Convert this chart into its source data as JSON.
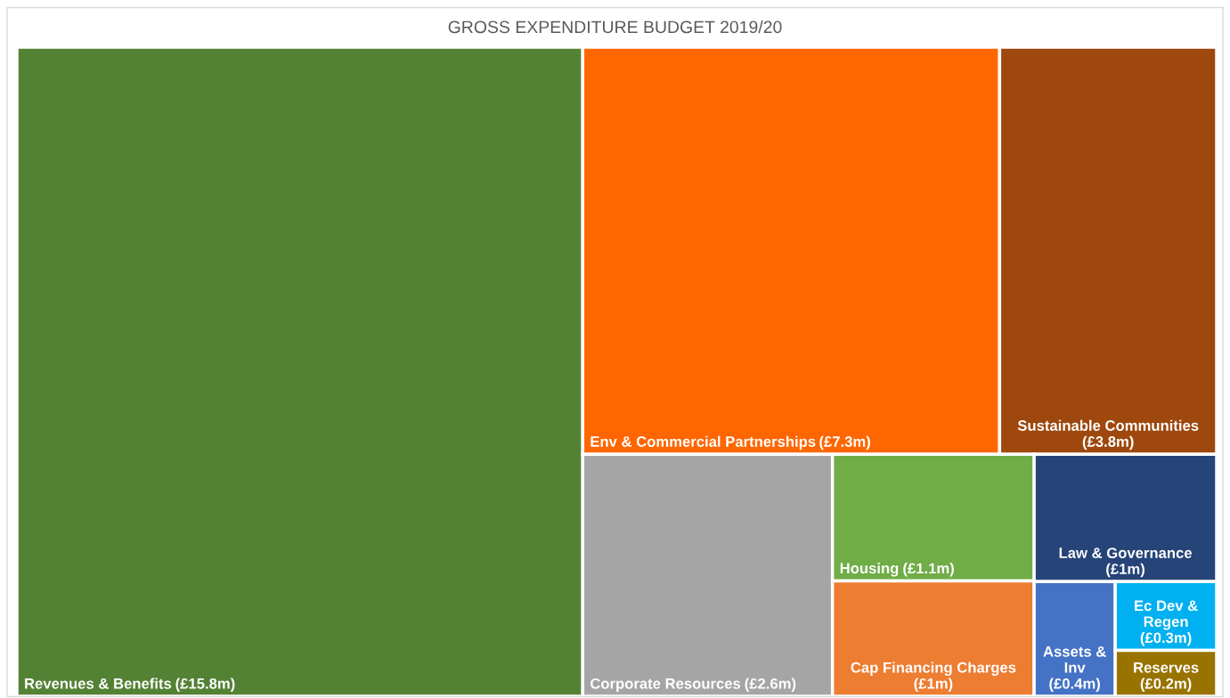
{
  "chart_data": {
    "type": "other",
    "title": "GROSS EXPENDITURE BUDGET 2019/20",
    "categories": [
      "Revenues & Benefits",
      "Env & Commercial Partnerships",
      "Sustainable Communities",
      "Corporate Resources",
      "Housing",
      "Cap Financing Charges",
      "Law & Governance",
      "Assets & Inv",
      "Ec Dev & Regen",
      "Reserves"
    ],
    "values": [
      15.8,
      7.3,
      3.8,
      2.6,
      1.1,
      1,
      1,
      0.4,
      0.3,
      0.2
    ],
    "value_labels": [
      "(£15.8m)",
      "(£7.3m)",
      "(£3.8m)",
      "(£2.6m)",
      "(£1.1m)",
      "(£1m)",
      "(£1m)",
      "(£0.4m)",
      "(£0.3m)",
      "(£0.2m)"
    ],
    "colors": [
      "#548235",
      "#ff6600",
      "#9e480e",
      "#a5a5a5",
      "#70ad47",
      "#ed7d31",
      "#264478",
      "#4472c4",
      "#00b0f0",
      "#997300"
    ]
  }
}
